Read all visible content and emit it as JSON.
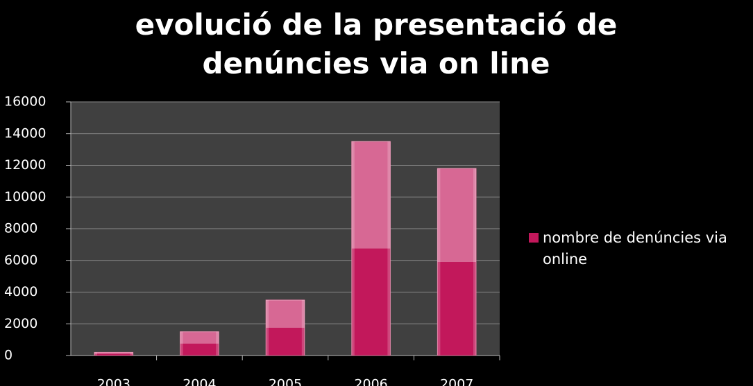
{
  "chart_data": {
    "type": "bar",
    "title": "evolució de la presentació de denúncies via on line",
    "categories": [
      "2003",
      "2004",
      "2005",
      "2006",
      "2007"
    ],
    "series": [
      {
        "name": "nombre de denúncies via online",
        "color": "#c2185b",
        "values": [
          200,
          1500,
          3500,
          13500,
          11800
        ]
      }
    ],
    "ylim": [
      0,
      16000
    ],
    "yticks": [
      0,
      2000,
      4000,
      6000,
      8000,
      10000,
      12000,
      14000,
      16000
    ],
    "grid": true,
    "legend": "right"
  }
}
